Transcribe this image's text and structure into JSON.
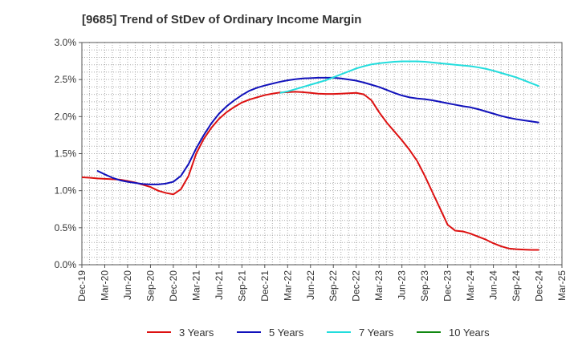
{
  "chart_data": {
    "type": "line",
    "title": "[9685]  Trend of StDev of Ordinary Income Margin",
    "xlabel": "",
    "ylabel": "",
    "x_ticks": [
      "Dec-19",
      "Mar-20",
      "Jun-20",
      "Sep-20",
      "Dec-20",
      "Mar-21",
      "Jun-21",
      "Sep-21",
      "Dec-21",
      "Mar-22",
      "Jun-22",
      "Sep-22",
      "Dec-22",
      "Mar-23",
      "Jun-23",
      "Sep-23",
      "Dec-23",
      "Mar-24",
      "Jun-24",
      "Sep-24",
      "Dec-24",
      "Mar-25"
    ],
    "y_ticks": [
      "0.0%",
      "0.5%",
      "1.0%",
      "1.5%",
      "2.0%",
      "2.5%",
      "3.0%"
    ],
    "ylim": [
      0,
      3.0
    ],
    "grid": true,
    "legend_position": "bottom",
    "series": [
      {
        "name": "3 Years",
        "color": "#dd1111",
        "points": [
          [
            "Dec-19",
            1.18
          ],
          [
            "Jan-20",
            1.175
          ],
          [
            "Feb-20",
            1.165
          ],
          [
            "Mar-20",
            1.16
          ],
          [
            "Apr-20",
            1.155
          ],
          [
            "May-20",
            1.15
          ],
          [
            "Jun-20",
            1.13
          ],
          [
            "Jul-20",
            1.11
          ],
          [
            "Aug-20",
            1.08
          ],
          [
            "Sep-20",
            1.05
          ],
          [
            "Oct-20",
            1.0
          ],
          [
            "Nov-20",
            0.97
          ],
          [
            "Dec-20",
            0.95
          ],
          [
            "Jan-21",
            1.02
          ],
          [
            "Feb-21",
            1.2
          ],
          [
            "Mar-21",
            1.5
          ],
          [
            "Apr-21",
            1.7
          ],
          [
            "May-21",
            1.85
          ],
          [
            "Jun-21",
            1.97
          ],
          [
            "Jul-21",
            2.06
          ],
          [
            "Aug-21",
            2.13
          ],
          [
            "Sep-21",
            2.19
          ],
          [
            "Oct-21",
            2.23
          ],
          [
            "Nov-21",
            2.26
          ],
          [
            "Dec-21",
            2.29
          ],
          [
            "Jan-22",
            2.31
          ],
          [
            "Feb-22",
            2.325
          ],
          [
            "Mar-22",
            2.33
          ],
          [
            "Apr-22",
            2.335
          ],
          [
            "May-22",
            2.33
          ],
          [
            "Jun-22",
            2.32
          ],
          [
            "Jul-22",
            2.31
          ],
          [
            "Aug-22",
            2.305
          ],
          [
            "Sep-22",
            2.305
          ],
          [
            "Oct-22",
            2.31
          ],
          [
            "Nov-22",
            2.315
          ],
          [
            "Dec-22",
            2.32
          ],
          [
            "Jan-23",
            2.3
          ],
          [
            "Feb-23",
            2.22
          ],
          [
            "Mar-23",
            2.06
          ],
          [
            "Apr-23",
            1.92
          ],
          [
            "May-23",
            1.8
          ],
          [
            "Jun-23",
            1.68
          ],
          [
            "Jul-23",
            1.55
          ],
          [
            "Aug-23",
            1.4
          ],
          [
            "Sep-23",
            1.2
          ],
          [
            "Oct-23",
            0.98
          ],
          [
            "Nov-23",
            0.76
          ],
          [
            "Dec-23",
            0.54
          ],
          [
            "Jan-24",
            0.46
          ],
          [
            "Feb-24",
            0.45
          ],
          [
            "Mar-24",
            0.42
          ],
          [
            "Apr-24",
            0.38
          ],
          [
            "May-24",
            0.34
          ],
          [
            "Jun-24",
            0.29
          ],
          [
            "Jul-24",
            0.25
          ],
          [
            "Aug-24",
            0.22
          ],
          [
            "Sep-24",
            0.21
          ],
          [
            "Oct-24",
            0.205
          ],
          [
            "Nov-24",
            0.2
          ],
          [
            "Dec-24",
            0.2
          ]
        ]
      },
      {
        "name": "5 Years",
        "color": "#1111bb",
        "points": [
          [
            "Feb-20",
            1.27
          ],
          [
            "Mar-20",
            1.22
          ],
          [
            "Apr-20",
            1.175
          ],
          [
            "May-20",
            1.14
          ],
          [
            "Jun-20",
            1.12
          ],
          [
            "Jul-20",
            1.105
          ],
          [
            "Aug-20",
            1.09
          ],
          [
            "Sep-20",
            1.085
          ],
          [
            "Oct-20",
            1.085
          ],
          [
            "Nov-20",
            1.095
          ],
          [
            "Dec-20",
            1.12
          ],
          [
            "Jan-21",
            1.2
          ],
          [
            "Feb-21",
            1.36
          ],
          [
            "Mar-21",
            1.57
          ],
          [
            "Apr-21",
            1.75
          ],
          [
            "May-21",
            1.91
          ],
          [
            "Jun-21",
            2.04
          ],
          [
            "Jul-21",
            2.14
          ],
          [
            "Aug-21",
            2.22
          ],
          [
            "Sep-21",
            2.29
          ],
          [
            "Oct-21",
            2.35
          ],
          [
            "Nov-21",
            2.39
          ],
          [
            "Dec-21",
            2.42
          ],
          [
            "Jan-22",
            2.445
          ],
          [
            "Feb-22",
            2.47
          ],
          [
            "Mar-22",
            2.49
          ],
          [
            "Apr-22",
            2.505
          ],
          [
            "May-22",
            2.515
          ],
          [
            "Jun-22",
            2.52
          ],
          [
            "Jul-22",
            2.525
          ],
          [
            "Aug-22",
            2.525
          ],
          [
            "Sep-22",
            2.525
          ],
          [
            "Oct-22",
            2.515
          ],
          [
            "Nov-22",
            2.5
          ],
          [
            "Dec-22",
            2.485
          ],
          [
            "Jan-23",
            2.46
          ],
          [
            "Feb-23",
            2.43
          ],
          [
            "Mar-23",
            2.4
          ],
          [
            "Apr-23",
            2.36
          ],
          [
            "May-23",
            2.32
          ],
          [
            "Jun-23",
            2.285
          ],
          [
            "Jul-23",
            2.26
          ],
          [
            "Aug-23",
            2.245
          ],
          [
            "Sep-23",
            2.235
          ],
          [
            "Oct-23",
            2.22
          ],
          [
            "Nov-23",
            2.2
          ],
          [
            "Dec-23",
            2.18
          ],
          [
            "Jan-24",
            2.16
          ],
          [
            "Feb-24",
            2.14
          ],
          [
            "Mar-24",
            2.125
          ],
          [
            "Apr-24",
            2.1
          ],
          [
            "May-24",
            2.07
          ],
          [
            "Jun-24",
            2.04
          ],
          [
            "Jul-24",
            2.01
          ],
          [
            "Aug-24",
            1.985
          ],
          [
            "Sep-24",
            1.965
          ],
          [
            "Oct-24",
            1.95
          ],
          [
            "Nov-24",
            1.935
          ],
          [
            "Dec-24",
            1.92
          ]
        ]
      },
      {
        "name": "7 Years",
        "color": "#22dddd",
        "points": [
          [
            "Feb-22",
            2.32
          ],
          [
            "Mar-22",
            2.34
          ],
          [
            "Apr-22",
            2.37
          ],
          [
            "May-22",
            2.4
          ],
          [
            "Jun-22",
            2.43
          ],
          [
            "Jul-22",
            2.46
          ],
          [
            "Aug-22",
            2.49
          ],
          [
            "Sep-22",
            2.53
          ],
          [
            "Oct-22",
            2.57
          ],
          [
            "Nov-22",
            2.61
          ],
          [
            "Dec-22",
            2.65
          ],
          [
            "Jan-23",
            2.68
          ],
          [
            "Feb-23",
            2.705
          ],
          [
            "Mar-23",
            2.72
          ],
          [
            "Apr-23",
            2.73
          ],
          [
            "May-23",
            2.74
          ],
          [
            "Jun-23",
            2.745
          ],
          [
            "Jul-23",
            2.745
          ],
          [
            "Aug-23",
            2.745
          ],
          [
            "Sep-23",
            2.74
          ],
          [
            "Oct-23",
            2.73
          ],
          [
            "Nov-23",
            2.72
          ],
          [
            "Dec-23",
            2.71
          ],
          [
            "Jan-24",
            2.7
          ],
          [
            "Feb-24",
            2.69
          ],
          [
            "Mar-24",
            2.68
          ],
          [
            "Apr-24",
            2.665
          ],
          [
            "May-24",
            2.645
          ],
          [
            "Jun-24",
            2.62
          ],
          [
            "Jul-24",
            2.59
          ],
          [
            "Aug-24",
            2.56
          ],
          [
            "Sep-24",
            2.53
          ],
          [
            "Oct-24",
            2.49
          ],
          [
            "Nov-24",
            2.45
          ],
          [
            "Dec-24",
            2.41
          ]
        ]
      },
      {
        "name": "10 Years",
        "color": "#118811",
        "points": []
      }
    ]
  }
}
